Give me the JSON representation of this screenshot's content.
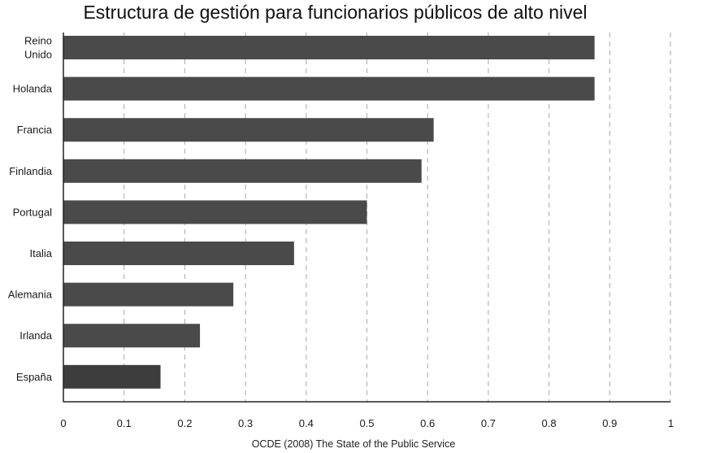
{
  "chart_data": {
    "type": "bar",
    "orientation": "horizontal",
    "title": "Estructura de gestión para funcionarios públicos de alto nivel",
    "source": "OCDE (2008) The State of the Public Service",
    "categories": [
      "Reino Unido",
      "Holanda",
      "Francia",
      "Finlandia",
      "Portugal",
      "Italia",
      "Alemania",
      "Irlanda",
      "España"
    ],
    "category_lines": [
      [
        "Reino",
        "Unido"
      ],
      [
        "Holanda"
      ],
      [
        "Francia"
      ],
      [
        "Finlandia"
      ],
      [
        "Portugal"
      ],
      [
        "Italia"
      ],
      [
        "Alemania"
      ],
      [
        "Irlanda"
      ],
      [
        "España"
      ]
    ],
    "values": [
      0.875,
      0.875,
      0.61,
      0.59,
      0.5,
      0.38,
      0.28,
      0.225,
      0.16
    ],
    "xlim": [
      0,
      1
    ],
    "xticks": [
      "0",
      "0.1",
      "0.2",
      "0.3",
      "0.4",
      "0.5",
      "0.6",
      "0.7",
      "0.8",
      "0.9",
      "1"
    ],
    "xlabel": "",
    "ylabel": "",
    "grid": "vertical-dashed",
    "colors": {
      "bar": "#4a4a4a",
      "bar_last": "#3d3d3d",
      "grid": "#b5b5b5",
      "axis": "#222222"
    }
  }
}
